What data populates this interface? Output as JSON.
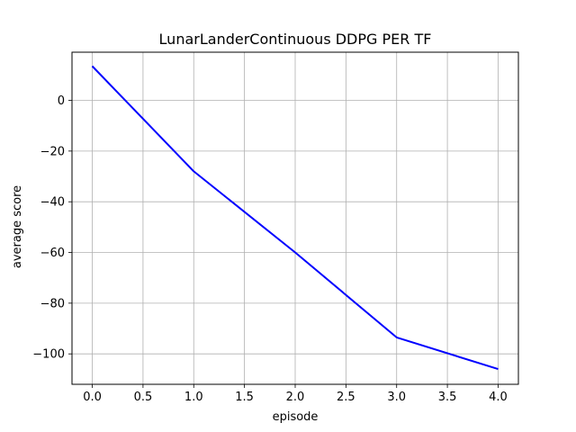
{
  "chart_data": {
    "type": "line",
    "title": "LunarLanderContinuous DDPG PER TF",
    "xlabel": "episode",
    "ylabel": "average score",
    "xlim": [
      -0.2,
      4.2
    ],
    "ylim": [
      -112,
      19
    ],
    "xticks": [
      0.0,
      0.5,
      1.0,
      1.5,
      2.0,
      2.5,
      3.0,
      3.5,
      4.0
    ],
    "xtick_labels": [
      "0.0",
      "0.5",
      "1.0",
      "1.5",
      "2.0",
      "2.5",
      "3.0",
      "3.5",
      "4.0"
    ],
    "yticks": [
      0,
      -20,
      -40,
      -60,
      -80,
      -100
    ],
    "ytick_labels": [
      "0",
      "−20",
      "−40",
      "−60",
      "−80",
      "−100"
    ],
    "grid": true,
    "series": [
      {
        "color": "#0000ff",
        "x": [
          0,
          1,
          2,
          3,
          4
        ],
        "y": [
          13.5,
          -28.0,
          -60.0,
          -93.5,
          -106.0
        ]
      }
    ]
  }
}
